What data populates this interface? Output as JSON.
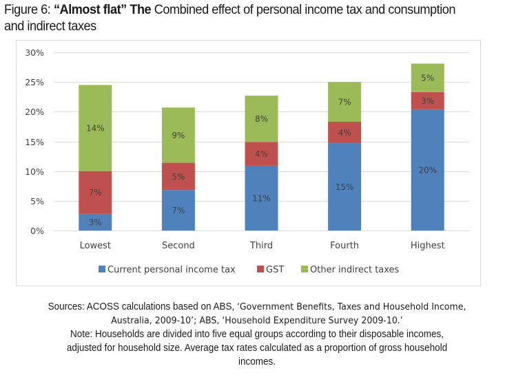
{
  "figure": {
    "label": "Figure 6:",
    "bold": "“Almost flat” The",
    "rest": "Combined effect of personal income tax and consumption and indirect taxes"
  },
  "chart_data": {
    "type": "bar",
    "stacked": true,
    "title": "",
    "xlabel": "",
    "ylabel": "",
    "categories": [
      "Lowest",
      "Second",
      "Third",
      "Fourth",
      "Highest"
    ],
    "ylim": [
      0,
      30
    ],
    "yticks": [
      0,
      5,
      10,
      15,
      20,
      25,
      30
    ],
    "ytick_labels": [
      "0%",
      "5%",
      "10%",
      "15%",
      "20%",
      "25%",
      "30%"
    ],
    "grid": true,
    "legend_position": "bottom",
    "series": [
      {
        "name": "Current personal income tax",
        "color": "#4F81BD",
        "values": [
          2.8,
          6.8,
          10.9,
          14.7,
          20.4
        ],
        "labels": [
          "3%",
          "7%",
          "11%",
          "15%",
          "20%"
        ]
      },
      {
        "name": "GST",
        "color": "#C0504D",
        "values": [
          7.2,
          4.6,
          4.0,
          3.6,
          2.9
        ],
        "labels": [
          "7%",
          "5%",
          "4%",
          "4%",
          "3%"
        ]
      },
      {
        "name": "Other indirect taxes",
        "color": "#9BBB59",
        "values": [
          14.5,
          9.3,
          7.8,
          6.7,
          4.8
        ],
        "labels": [
          "14%",
          "9%",
          "8%",
          "7%",
          "5%"
        ]
      }
    ]
  },
  "sources": {
    "line1_plain": "Sources: ACOSS calculations based on ABS, ",
    "line1_bold": "‘Government Benefits, Taxes and Household Income,",
    "line2_bold": "Australia, 2009-10’; ABS, ‘Household Expenditure Survey 2009-10.’",
    "line3": "Note: Households are divided into five equal groups according to their disposable incomes,",
    "line4": "adjusted for household size. Average tax rates calculated as a proportion of gross household",
    "line5": "incomes."
  }
}
